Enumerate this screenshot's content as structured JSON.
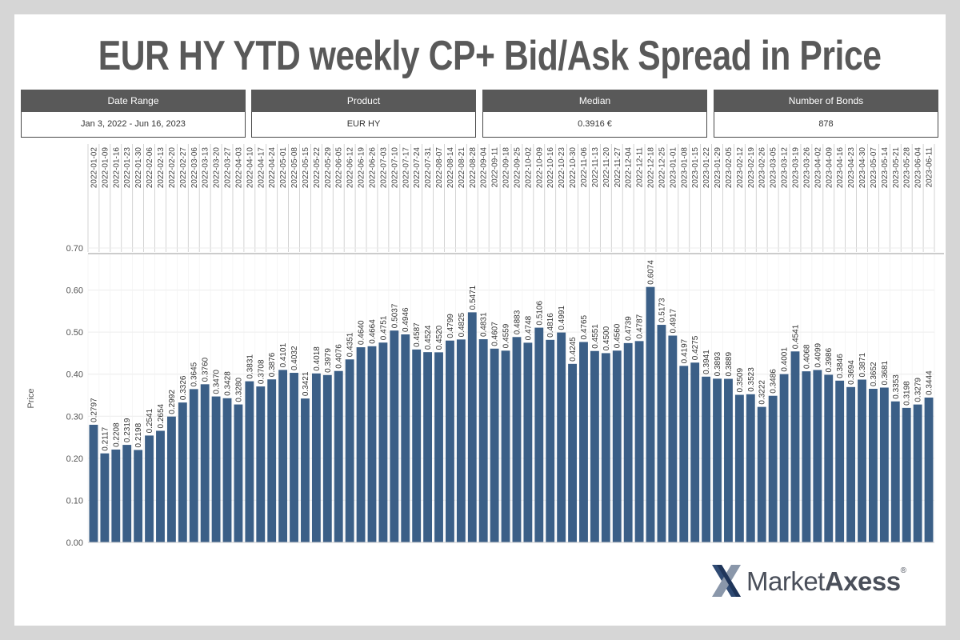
{
  "title": "EUR HY YTD weekly CP+ Bid/Ask Spread in Price",
  "cards": [
    {
      "label": "Date Range",
      "value": "Jan 3, 2022 - Jun 16, 2023"
    },
    {
      "label": "Product",
      "value": "EUR HY"
    },
    {
      "label": "Median",
      "value": "0.3916 €"
    },
    {
      "label": "Number of Bonds",
      "value": "878"
    }
  ],
  "logo": {
    "text_a": "Market",
    "text_b": "Axess",
    "reg": "®"
  },
  "colors": {
    "bar": "#3b5f87",
    "title": "#595959",
    "card_header": "#595959"
  },
  "chart_data": {
    "type": "bar",
    "ylabel": "Price",
    "ylim": [
      0,
      0.7
    ],
    "yticks": [
      "0.00",
      "0.10",
      "0.20",
      "0.30",
      "0.40",
      "0.50",
      "0.60",
      "0.70"
    ],
    "grid": true,
    "categories": [
      "2022-01-02",
      "2022-01-09",
      "2022-01-16",
      "2022-01-23",
      "2022-01-30",
      "2022-02-06",
      "2022-02-13",
      "2022-02-20",
      "2022-02-27",
      "2022-03-06",
      "2022-03-13",
      "2022-03-20",
      "2022-03-27",
      "2022-04-03",
      "2022-04-10",
      "2022-04-17",
      "2022-04-24",
      "2022-05-01",
      "2022-05-08",
      "2022-05-15",
      "2022-05-22",
      "2022-05-29",
      "2022-06-05",
      "2022-06-12",
      "2022-06-19",
      "2022-06-26",
      "2022-07-03",
      "2022-07-10",
      "2022-07-17",
      "2022-07-24",
      "2022-07-31",
      "2022-08-07",
      "2022-08-14",
      "2022-08-21",
      "2022-08-28",
      "2022-09-04",
      "2022-09-11",
      "2022-09-18",
      "2022-09-25",
      "2022-10-02",
      "2022-10-09",
      "2022-10-16",
      "2022-10-23",
      "2022-10-30",
      "2022-11-06",
      "2022-11-13",
      "2022-11-20",
      "2022-11-27",
      "2022-12-04",
      "2022-12-11",
      "2022-12-18",
      "2022-12-25",
      "2023-01-01",
      "2023-01-08",
      "2023-01-15",
      "2023-01-22",
      "2023-01-29",
      "2023-02-05",
      "2023-02-12",
      "2023-02-19",
      "2023-02-26",
      "2023-03-05",
      "2023-03-12",
      "2023-03-19",
      "2023-03-26",
      "2023-04-02",
      "2023-04-09",
      "2023-04-16",
      "2023-04-23",
      "2023-04-30",
      "2023-05-07",
      "2023-05-14",
      "2023-05-21",
      "2023-05-28",
      "2023-06-04",
      "2023-06-11"
    ],
    "values": [
      0.2797,
      0.2117,
      0.2208,
      0.2319,
      0.2198,
      0.2541,
      0.2654,
      0.2992,
      0.3326,
      0.3645,
      0.376,
      0.347,
      0.3428,
      0.328,
      0.3831,
      0.3708,
      0.3876,
      0.4101,
      0.4032,
      0.3421,
      0.4018,
      0.3979,
      0.4076,
      0.4351,
      0.464,
      0.4664,
      0.4751,
      0.5037,
      0.4946,
      0.4587,
      0.4524,
      0.452,
      0.4799,
      0.4825,
      0.5471,
      0.4831,
      0.4607,
      0.4559,
      0.4883,
      0.4748,
      0.5106,
      0.4816,
      0.4991,
      0.4245,
      0.4765,
      0.4551,
      0.45,
      0.456,
      0.4739,
      0.4787,
      0.6074,
      0.5173,
      0.4917,
      0.4197,
      0.4275,
      0.3941,
      0.3893,
      0.3889,
      0.3509,
      0.3523,
      0.3222,
      0.3486,
      0.4001,
      0.4541,
      0.4068,
      0.4099,
      0.3986,
      0.3846,
      0.3694,
      0.3871,
      0.3652,
      0.3681,
      0.3353,
      0.3198,
      0.3279,
      0.3444
    ],
    "value_labels": [
      "0.2797",
      "0.2117",
      "0.2208",
      "0.2319",
      "0.2198",
      "0.2541",
      "0.2654",
      "0.2992",
      "0.3326",
      "0.3645",
      "0.3760",
      "0.3470",
      "0.3428",
      "0.3280",
      "0.3831",
      "0.3708",
      "0.3876",
      "0.4101",
      "0.4032",
      "0.3421",
      "0.4018",
      "0.3979",
      "0.4076",
      "0.4351",
      "0.4640",
      "0.4664",
      "0.4751",
      "0.5037",
      "0.4946",
      "0.4587",
      "0.4524",
      "0.4520",
      "0.4799",
      "0.4825",
      "0.5471",
      "0.4831",
      "0.4607",
      "0.4559",
      "0.4883",
      "0.4748",
      "0.5106",
      "0.4816",
      "0.4991",
      "0.4245",
      "0.4765",
      "0.4551",
      "0.4500",
      "0.4560",
      "0.4739",
      "0.4787",
      "0.6074",
      "0.5173",
      "0.4917",
      "0.4197",
      "0.4275",
      "0.3941",
      "0.3893",
      "0.3889",
      "0.3509",
      "0.3523",
      "0.3222",
      "0.3486",
      "0.4001",
      "0.4541",
      "0.4068",
      "0.4099",
      "0.3986",
      "0.3846",
      "0.3694",
      "0.3871",
      "0.3652",
      "0.3681",
      "0.3353",
      "0.3198",
      "0.3279",
      "0.3444"
    ]
  }
}
